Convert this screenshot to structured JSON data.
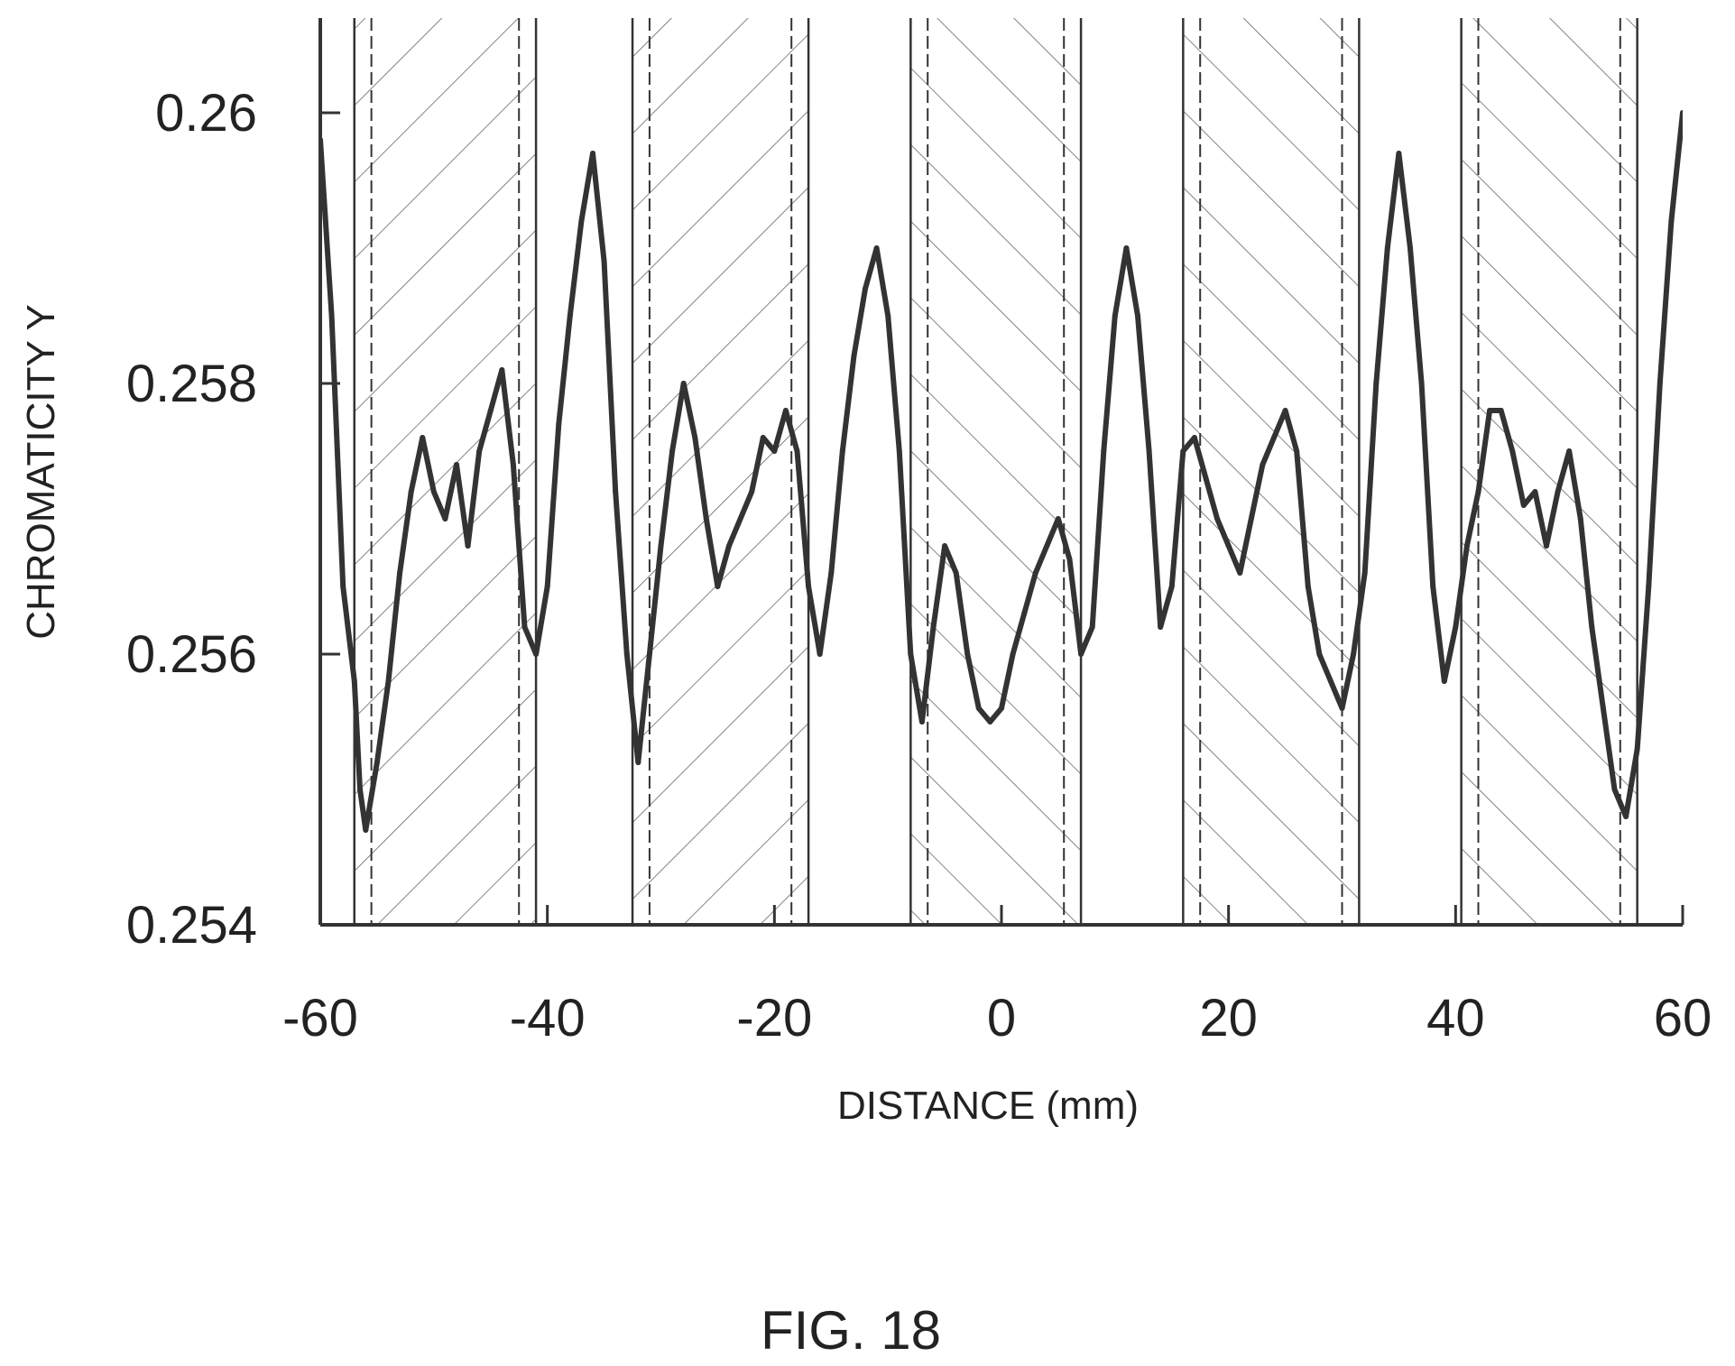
{
  "caption": "FIG. 18",
  "colors": {
    "line": "#333333",
    "axis": "#333333",
    "hatch": "#666666",
    "background": "#ffffff"
  },
  "chart_data": {
    "type": "line",
    "title": "",
    "xlabel": "DISTANCE (mm)",
    "ylabel": "CHROMATICITY Y",
    "xlim": [
      -60,
      60
    ],
    "ylim": [
      0.254,
      0.2607
    ],
    "xticks": [
      -60,
      -40,
      -20,
      0,
      20,
      40,
      60
    ],
    "xtick_labels": [
      "-60",
      "-40",
      "-20",
      "0",
      "20",
      "40",
      "60"
    ],
    "yticks": [
      0.254,
      0.256,
      0.258,
      0.26
    ],
    "ytick_labels": [
      "0.254",
      "0.256",
      "0.258",
      "0.26"
    ],
    "grid": false,
    "legend": "none",
    "series": [
      {
        "x": [
          -60,
          -59,
          -58,
          -57,
          -56.5,
          -56,
          -55,
          -54,
          -53,
          -52,
          -51,
          -50,
          -49,
          -48,
          -47,
          -46,
          -45,
          -44,
          -43,
          -42,
          -41,
          -40,
          -39,
          -38,
          -37,
          -36,
          -35,
          -34,
          -33,
          -32,
          -31,
          -30,
          -29,
          -28,
          -27,
          -26,
          -25,
          -24,
          -23,
          -22,
          -21,
          -20,
          -19,
          -18,
          -17,
          -16,
          -15,
          -14,
          -13,
          -12,
          -11,
          -10,
          -9,
          -8,
          -7,
          -6,
          -5,
          -4,
          -3,
          -2,
          -1,
          0,
          1,
          2,
          3,
          4,
          5,
          6,
          7,
          8,
          9,
          10,
          11,
          12,
          13,
          14,
          15,
          16,
          17,
          18,
          19,
          20,
          21,
          22,
          23,
          24,
          25,
          26,
          27,
          28,
          29,
          30,
          31,
          32,
          33,
          34,
          35,
          36,
          37,
          38,
          39,
          40,
          41,
          42,
          43,
          44,
          45,
          46,
          47,
          48,
          49,
          50,
          51,
          52,
          53,
          54,
          55,
          56,
          57,
          58,
          59,
          60
        ],
        "values": [
          0.2598,
          0.2585,
          0.2565,
          0.2558,
          0.255,
          0.2547,
          0.2552,
          0.2558,
          0.2566,
          0.2572,
          0.2576,
          0.2572,
          0.257,
          0.2574,
          0.2568,
          0.2575,
          0.2578,
          0.2581,
          0.2574,
          0.2562,
          0.256,
          0.2565,
          0.2577,
          0.2585,
          0.2592,
          0.2597,
          0.2589,
          0.2572,
          0.256,
          0.2552,
          0.256,
          0.2568,
          0.2575,
          0.258,
          0.2576,
          0.257,
          0.2565,
          0.2568,
          0.257,
          0.2572,
          0.2576,
          0.2575,
          0.2578,
          0.2575,
          0.2565,
          0.256,
          0.2566,
          0.2575,
          0.2582,
          0.2587,
          0.259,
          0.2585,
          0.2575,
          0.256,
          0.2555,
          0.2562,
          0.2568,
          0.2566,
          0.256,
          0.2556,
          0.2555,
          0.2556,
          0.256,
          0.2563,
          0.2566,
          0.2568,
          0.257,
          0.2567,
          0.256,
          0.2562,
          0.2575,
          0.2585,
          0.259,
          0.2585,
          0.2575,
          0.2562,
          0.2565,
          0.2575,
          0.2576,
          0.2573,
          0.257,
          0.2568,
          0.2566,
          0.257,
          0.2574,
          0.2576,
          0.2578,
          0.2575,
          0.2565,
          0.256,
          0.2558,
          0.2556,
          0.256,
          0.2566,
          0.258,
          0.259,
          0.2597,
          0.259,
          0.258,
          0.2565,
          0.2558,
          0.2562,
          0.2568,
          0.2572,
          0.2578,
          0.2578,
          0.2575,
          0.2571,
          0.2572,
          0.2568,
          0.2572,
          0.2575,
          0.257,
          0.2562,
          0.2556,
          0.255,
          0.2548,
          0.2553,
          0.2565,
          0.258,
          0.2592,
          0.26
        ]
      }
    ],
    "hatch_bands": [
      {
        "from": -57,
        "to": -41,
        "direction": "backslash",
        "inner_dashed": [
          -55.5,
          -42.5
        ]
      },
      {
        "from": -32.5,
        "to": -17,
        "direction": "backslash",
        "inner_dashed": [
          -31,
          -18.5
        ]
      },
      {
        "from": -8,
        "to": 7,
        "direction": "slash",
        "inner_dashed": [
          -6.5,
          5.5
        ]
      },
      {
        "from": 16,
        "to": 31.5,
        "direction": "slash",
        "inner_dashed": [
          17.5,
          30
        ]
      },
      {
        "from": 40.5,
        "to": 56,
        "direction": "slash",
        "inner_dashed": [
          42,
          54.5
        ]
      }
    ]
  }
}
